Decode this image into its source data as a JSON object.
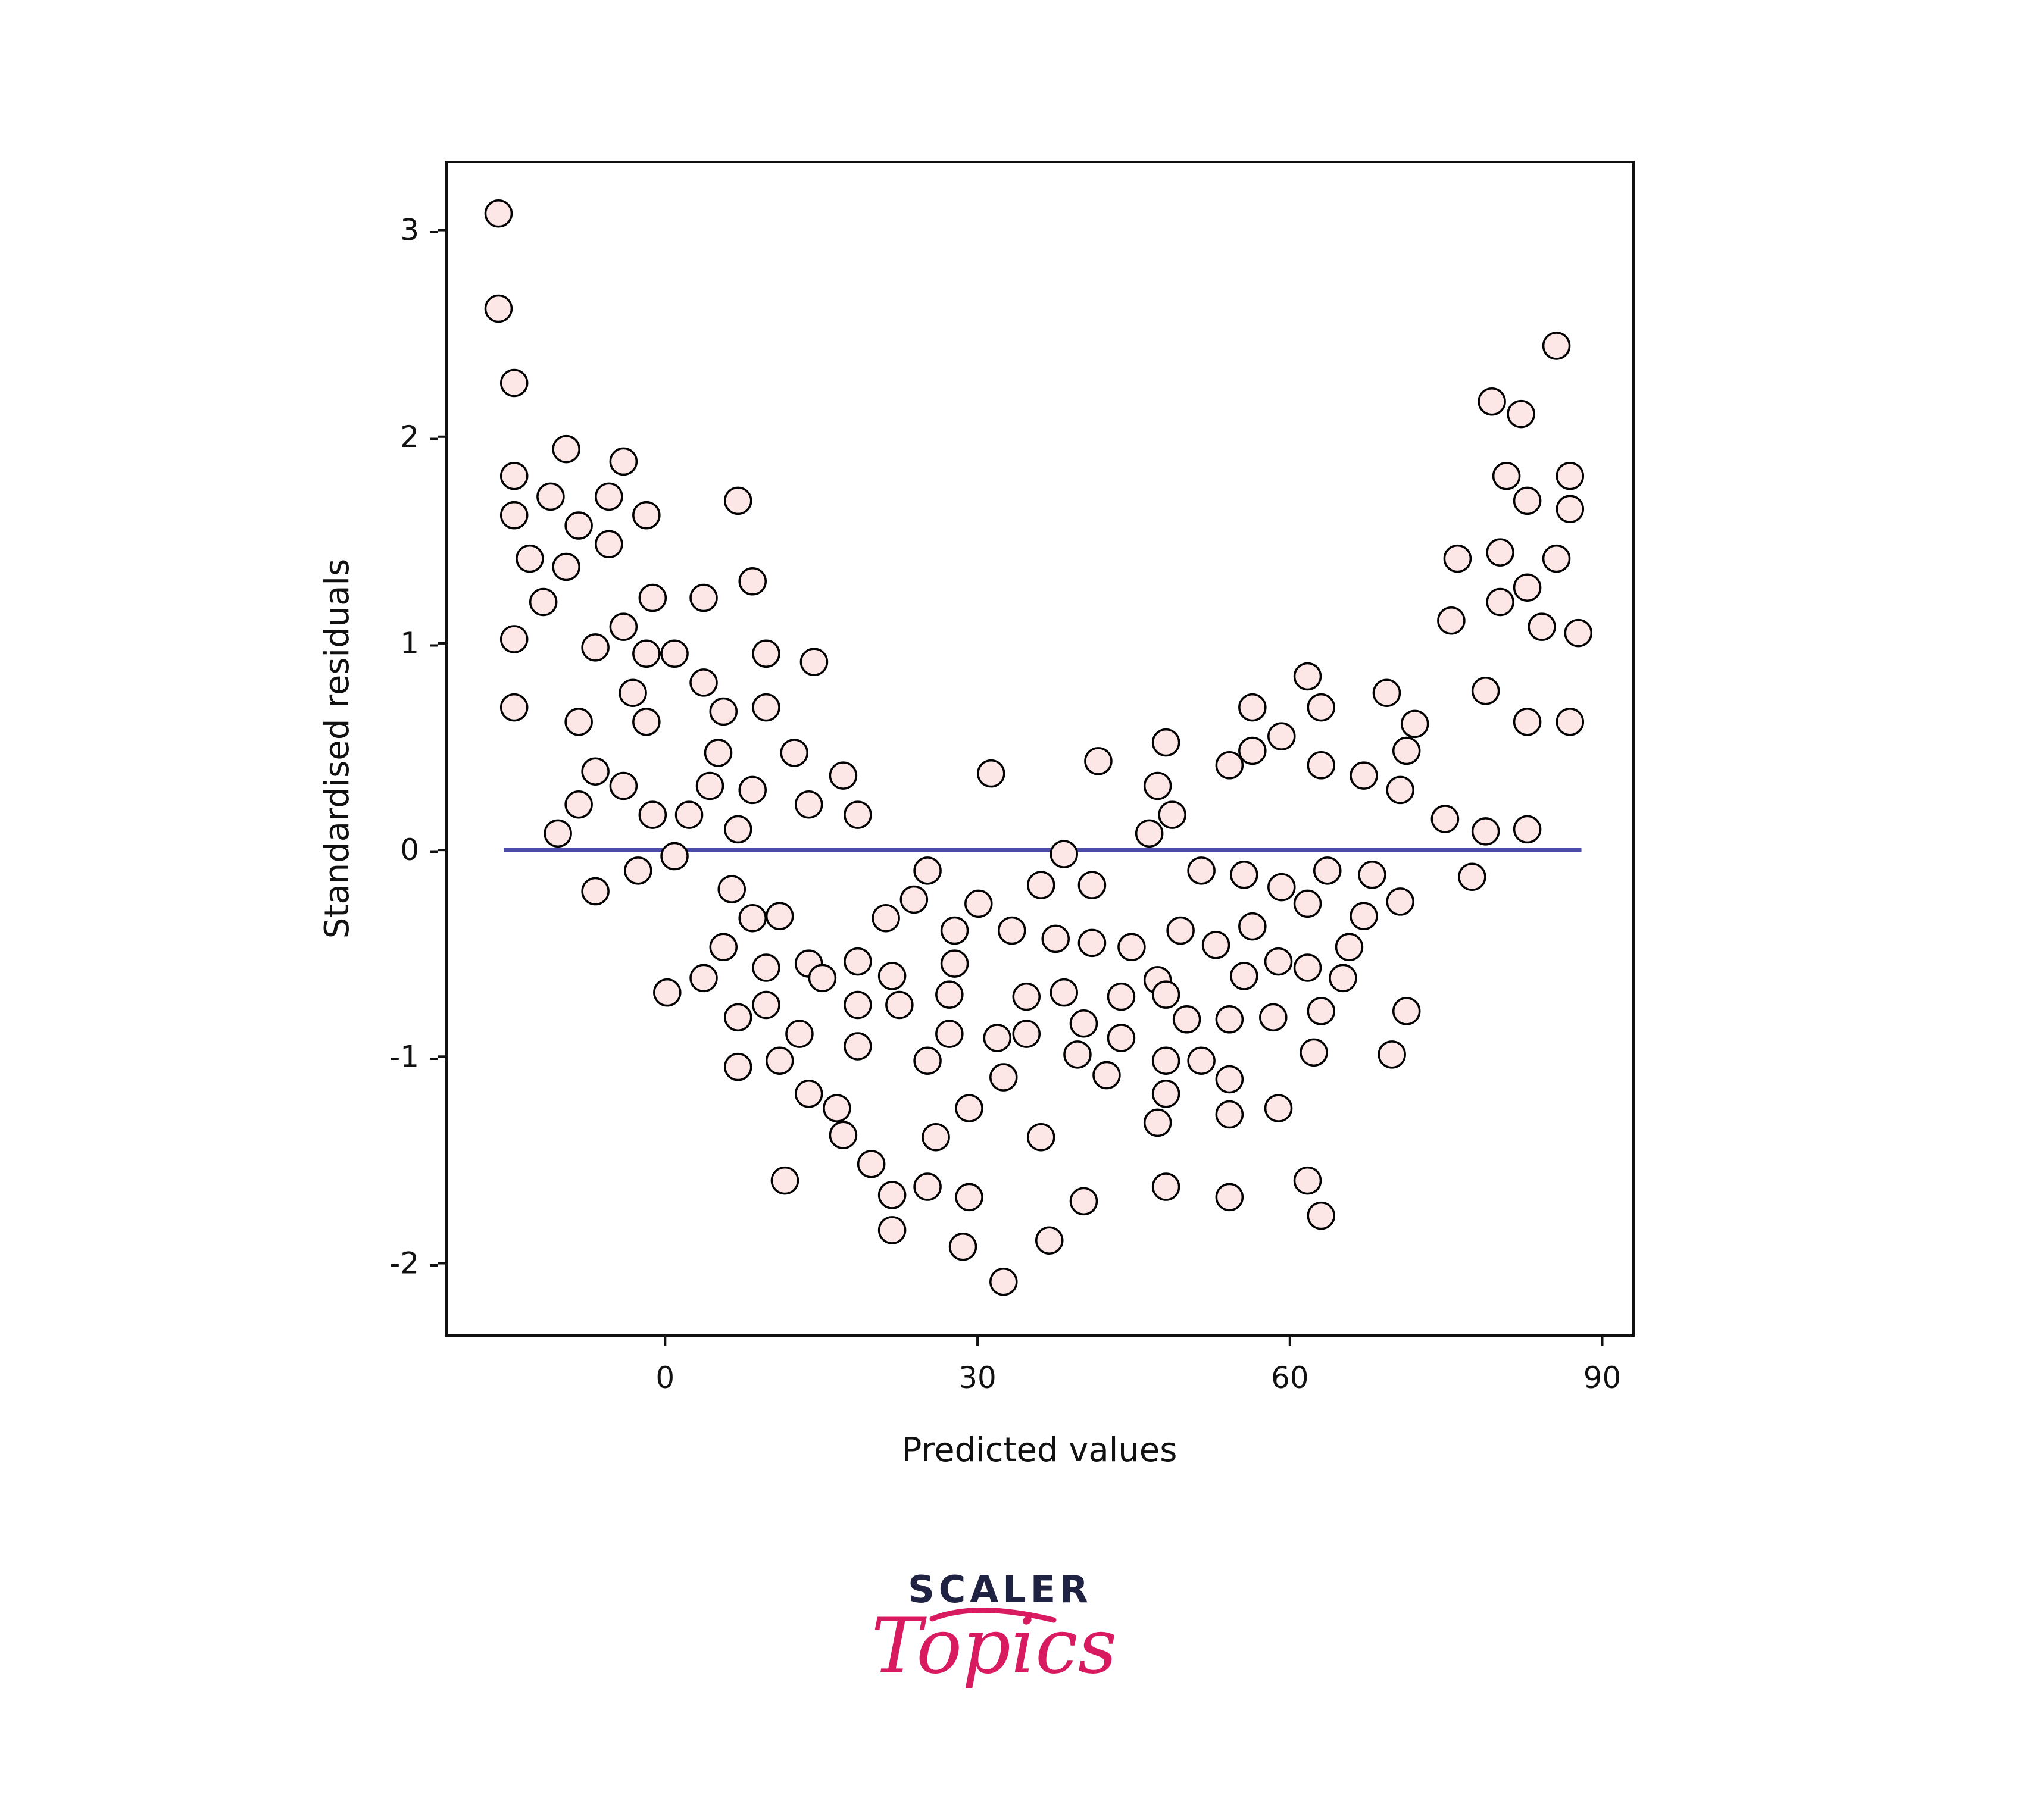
{
  "chart_data": {
    "type": "scatter",
    "xlabel": "Predicted values",
    "ylabel": "Standardised residuals",
    "x_ticks": [
      0,
      30,
      60,
      90
    ],
    "y_ticks": [
      -2,
      -1,
      0,
      1,
      2,
      3
    ],
    "x_tick_labels": [
      "0",
      "30",
      "60",
      "90"
    ],
    "y_tick_labels": [
      "-2 -",
      "-1 -",
      "0 -",
      "1 -",
      "2 -",
      "3 -"
    ],
    "xlim": [
      -21,
      93
    ],
    "ylim": [
      -2.35,
      3.33
    ],
    "grid": false,
    "reference_line": {
      "y": 0,
      "x_start": -15.5,
      "x_end": 88,
      "color": "#4a4aa8"
    },
    "marker": {
      "fill": "#fde6e6",
      "edge": "#000000"
    },
    "points": [
      {
        "x": -16,
        "y": 3.08
      },
      {
        "x": -16,
        "y": 2.62
      },
      {
        "x": -14.5,
        "y": 2.26
      },
      {
        "x": -14.5,
        "y": 1.81
      },
      {
        "x": -14.5,
        "y": 1.62
      },
      {
        "x": -14.5,
        "y": 1.02
      },
      {
        "x": -14.5,
        "y": 0.69
      },
      {
        "x": -13,
        "y": 1.41
      },
      {
        "x": -11.7,
        "y": 1.2
      },
      {
        "x": -11,
        "y": 1.71
      },
      {
        "x": -10.3,
        "y": 0.08
      },
      {
        "x": -9.5,
        "y": 1.94
      },
      {
        "x": -9.5,
        "y": 1.37
      },
      {
        "x": -8.3,
        "y": 1.57
      },
      {
        "x": -8.3,
        "y": 0.62
      },
      {
        "x": -8.3,
        "y": 0.22
      },
      {
        "x": -6.7,
        "y": 0.98
      },
      {
        "x": -6.7,
        "y": 0.38
      },
      {
        "x": -6.7,
        "y": -0.2
      },
      {
        "x": -5.4,
        "y": 1.71
      },
      {
        "x": -5.4,
        "y": 1.48
      },
      {
        "x": -4,
        "y": 1.88
      },
      {
        "x": -4,
        "y": 1.08
      },
      {
        "x": -4,
        "y": 0.31
      },
      {
        "x": -3.1,
        "y": 0.76
      },
      {
        "x": -2.6,
        "y": -0.1
      },
      {
        "x": -1.8,
        "y": 1.62
      },
      {
        "x": -1.8,
        "y": 0.95
      },
      {
        "x": -1.8,
        "y": 0.62
      },
      {
        "x": -1.2,
        "y": 1.22
      },
      {
        "x": -1.2,
        "y": 0.17
      },
      {
        "x": 0.2,
        "y": -0.69
      },
      {
        "x": 0.9,
        "y": 0.95
      },
      {
        "x": 0.9,
        "y": -0.03
      },
      {
        "x": 2.3,
        "y": 0.17
      },
      {
        "x": 3.7,
        "y": 1.22
      },
      {
        "x": 3.7,
        "y": 0.81
      },
      {
        "x": 3.7,
        "y": -0.62
      },
      {
        "x": 4.3,
        "y": 0.31
      },
      {
        "x": 5.1,
        "y": 0.47
      },
      {
        "x": 5.6,
        "y": 0.67
      },
      {
        "x": 5.6,
        "y": -0.47
      },
      {
        "x": 6.4,
        "y": -0.19
      },
      {
        "x": 7,
        "y": 1.69
      },
      {
        "x": 7,
        "y": 0.1
      },
      {
        "x": 7,
        "y": -0.81
      },
      {
        "x": 7,
        "y": -1.05
      },
      {
        "x": 8.4,
        "y": 1.3
      },
      {
        "x": 8.4,
        "y": 0.29
      },
      {
        "x": 8.4,
        "y": -0.33
      },
      {
        "x": 9.7,
        "y": 0.95
      },
      {
        "x": 9.7,
        "y": 0.69
      },
      {
        "x": 9.7,
        "y": -0.57
      },
      {
        "x": 9.7,
        "y": -0.75
      },
      {
        "x": 11,
        "y": -0.32
      },
      {
        "x": 11,
        "y": -1.02
      },
      {
        "x": 11.5,
        "y": -1.6
      },
      {
        "x": 12.4,
        "y": 0.47
      },
      {
        "x": 12.9,
        "y": -0.89
      },
      {
        "x": 13.8,
        "y": 0.22
      },
      {
        "x": 13.8,
        "y": -0.55
      },
      {
        "x": 13.8,
        "y": -1.18
      },
      {
        "x": 14.3,
        "y": 0.91
      },
      {
        "x": 15.1,
        "y": -0.62
      },
      {
        "x": 16.5,
        "y": -1.25
      },
      {
        "x": 17.1,
        "y": 0.36
      },
      {
        "x": 17.1,
        "y": -1.38
      },
      {
        "x": 18.5,
        "y": 0.17
      },
      {
        "x": 18.5,
        "y": -0.54
      },
      {
        "x": 18.5,
        "y": -0.75
      },
      {
        "x": 18.5,
        "y": -0.95
      },
      {
        "x": 19.8,
        "y": -1.52
      },
      {
        "x": 21.2,
        "y": -0.33
      },
      {
        "x": 21.8,
        "y": -0.61
      },
      {
        "x": 21.8,
        "y": -1.67
      },
      {
        "x": 21.8,
        "y": -1.84
      },
      {
        "x": 22.5,
        "y": -0.75
      },
      {
        "x": 23.9,
        "y": -0.24
      },
      {
        "x": 25.2,
        "y": -0.1
      },
      {
        "x": 25.2,
        "y": -1.02
      },
      {
        "x": 25.2,
        "y": -1.63
      },
      {
        "x": 26,
        "y": -1.39
      },
      {
        "x": 27.3,
        "y": -0.7
      },
      {
        "x": 27.3,
        "y": -0.89
      },
      {
        "x": 27.8,
        "y": -0.39
      },
      {
        "x": 27.8,
        "y": -0.55
      },
      {
        "x": 28.6,
        "y": -1.92
      },
      {
        "x": 29.2,
        "y": -1.25
      },
      {
        "x": 29.2,
        "y": -1.68
      },
      {
        "x": 30.1,
        "y": -0.26
      },
      {
        "x": 31.3,
        "y": 0.37
      },
      {
        "x": 31.9,
        "y": -0.91
      },
      {
        "x": 32.5,
        "y": -1.1
      },
      {
        "x": 32.5,
        "y": -2.09
      },
      {
        "x": 33.3,
        "y": -0.39
      },
      {
        "x": 34.7,
        "y": -0.71
      },
      {
        "x": 34.7,
        "y": -0.89
      },
      {
        "x": 36.1,
        "y": -0.17
      },
      {
        "x": 36.1,
        "y": -1.39
      },
      {
        "x": 36.9,
        "y": -1.89
      },
      {
        "x": 37.5,
        "y": -0.43
      },
      {
        "x": 38.3,
        "y": -0.02
      },
      {
        "x": 38.3,
        "y": -0.69
      },
      {
        "x": 39.6,
        "y": -0.99
      },
      {
        "x": 40.2,
        "y": -0.84
      },
      {
        "x": 40.2,
        "y": -1.7
      },
      {
        "x": 41,
        "y": -0.17
      },
      {
        "x": 41,
        "y": -0.45
      },
      {
        "x": 41.6,
        "y": 0.43
      },
      {
        "x": 42.4,
        "y": -1.09
      },
      {
        "x": 43.8,
        "y": -0.71
      },
      {
        "x": 43.8,
        "y": -0.91
      },
      {
        "x": 44.8,
        "y": -0.47
      },
      {
        "x": 46.5,
        "y": 0.08
      },
      {
        "x": 47.3,
        "y": 0.31
      },
      {
        "x": 47.3,
        "y": -0.63
      },
      {
        "x": 47.3,
        "y": -1.32
      },
      {
        "x": 48.1,
        "y": 0.52
      },
      {
        "x": 48.1,
        "y": -0.7
      },
      {
        "x": 48.1,
        "y": -1.02
      },
      {
        "x": 48.1,
        "y": -1.18
      },
      {
        "x": 48.1,
        "y": -1.63
      },
      {
        "x": 48.7,
        "y": 0.17
      },
      {
        "x": 49.5,
        "y": -0.39
      },
      {
        "x": 50.1,
        "y": -0.82
      },
      {
        "x": 51.5,
        "y": -0.1
      },
      {
        "x": 51.5,
        "y": -1.02
      },
      {
        "x": 52.9,
        "y": -0.46
      },
      {
        "x": 54.2,
        "y": 0.41
      },
      {
        "x": 54.2,
        "y": -0.82
      },
      {
        "x": 54.2,
        "y": -1.11
      },
      {
        "x": 54.2,
        "y": -1.28
      },
      {
        "x": 54.2,
        "y": -1.68
      },
      {
        "x": 55.6,
        "y": -0.12
      },
      {
        "x": 55.6,
        "y": -0.61
      },
      {
        "x": 56.4,
        "y": 0.69
      },
      {
        "x": 56.4,
        "y": 0.48
      },
      {
        "x": 56.4,
        "y": -0.37
      },
      {
        "x": 58.4,
        "y": -0.81
      },
      {
        "x": 58.9,
        "y": -0.54
      },
      {
        "x": 58.9,
        "y": -1.25
      },
      {
        "x": 59.2,
        "y": 0.55
      },
      {
        "x": 59.2,
        "y": -0.18
      },
      {
        "x": 61.7,
        "y": 0.84
      },
      {
        "x": 61.7,
        "y": -0.26
      },
      {
        "x": 61.7,
        "y": -0.57
      },
      {
        "x": 61.7,
        "y": -1.6
      },
      {
        "x": 62.3,
        "y": -0.98
      },
      {
        "x": 63,
        "y": 0.69
      },
      {
        "x": 63,
        "y": 0.41
      },
      {
        "x": 63,
        "y": -0.78
      },
      {
        "x": 63,
        "y": -1.77
      },
      {
        "x": 63.6,
        "y": -0.1
      },
      {
        "x": 65.1,
        "y": -0.62
      },
      {
        "x": 65.7,
        "y": -0.47
      },
      {
        "x": 67.1,
        "y": 0.36
      },
      {
        "x": 67.1,
        "y": -0.32
      },
      {
        "x": 67.9,
        "y": -0.12
      },
      {
        "x": 69.3,
        "y": 0.76
      },
      {
        "x": 69.8,
        "y": -0.99
      },
      {
        "x": 70.6,
        "y": 0.29
      },
      {
        "x": 70.6,
        "y": -0.25
      },
      {
        "x": 71.2,
        "y": 0.48
      },
      {
        "x": 71.2,
        "y": -0.78
      },
      {
        "x": 72,
        "y": 0.61
      },
      {
        "x": 74.9,
        "y": 0.15
      },
      {
        "x": 75.5,
        "y": 1.11
      },
      {
        "x": 76.1,
        "y": 1.41
      },
      {
        "x": 77.5,
        "y": -0.13
      },
      {
        "x": 78.8,
        "y": 0.77
      },
      {
        "x": 78.8,
        "y": 0.09
      },
      {
        "x": 79.4,
        "y": 2.17
      },
      {
        "x": 80.2,
        "y": 1.44
      },
      {
        "x": 80.2,
        "y": 1.2
      },
      {
        "x": 80.8,
        "y": 1.81
      },
      {
        "x": 82.2,
        "y": 2.11
      },
      {
        "x": 82.8,
        "y": 1.69
      },
      {
        "x": 82.8,
        "y": 1.27
      },
      {
        "x": 82.8,
        "y": 0.62
      },
      {
        "x": 82.8,
        "y": 0.1
      },
      {
        "x": 84.2,
        "y": 1.08
      },
      {
        "x": 85.6,
        "y": 2.44
      },
      {
        "x": 85.6,
        "y": 1.41
      },
      {
        "x": 86.9,
        "y": 1.81
      },
      {
        "x": 86.9,
        "y": 1.65
      },
      {
        "x": 86.9,
        "y": 0.62
      },
      {
        "x": 87.7,
        "y": 1.05
      }
    ]
  },
  "logo": {
    "line1": "SCALER",
    "line2": "Topics",
    "dark_color": "#1f2240",
    "accent_color": "#d81b60"
  }
}
